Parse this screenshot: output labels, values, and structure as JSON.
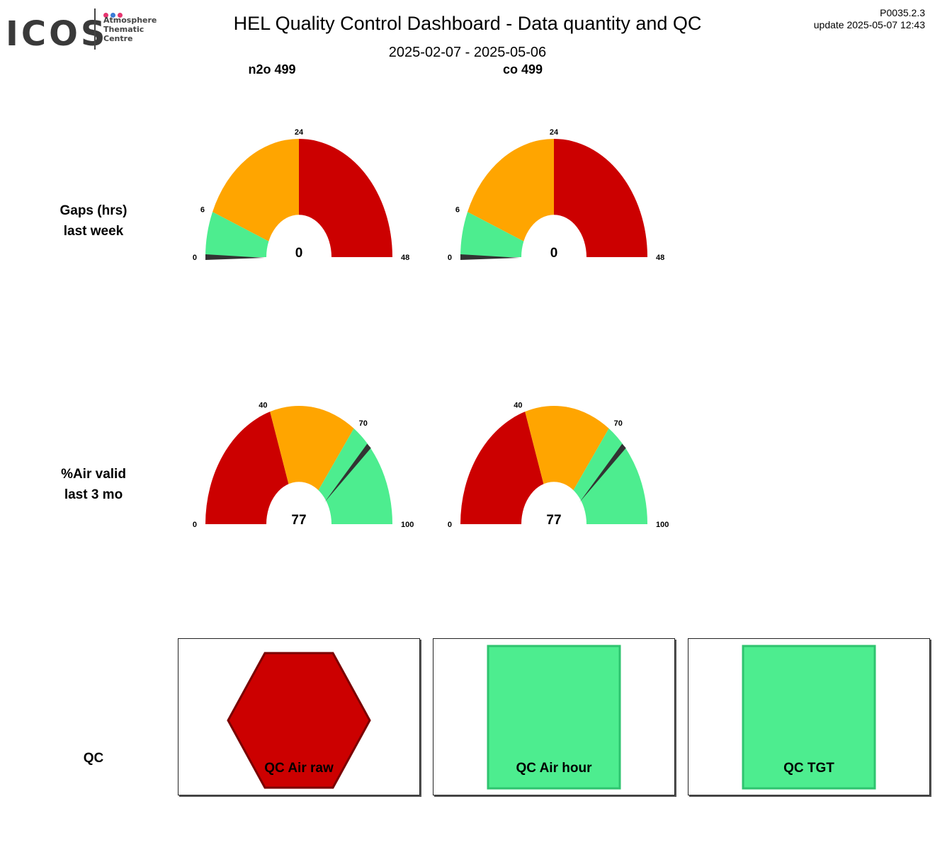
{
  "header": {
    "logo_text": "ICOS",
    "logo_subtitle": [
      "Atmosphere",
      "Thematic",
      "Centre"
    ],
    "title": "HEL  Quality Control Dashboard - Data quantity and QC",
    "date_range": "2025-02-07 - 2025-05-06",
    "version": "P0035.2.3",
    "update": "update  2025-05-07 12:43"
  },
  "colors": {
    "red": "#cc0000",
    "orange": "#ffa500",
    "green": "#4ded8f",
    "needle": "#333333",
    "logo_dots": [
      "#e6356f",
      "#3a7bd5",
      "#e6356f"
    ]
  },
  "columns": [
    "n2o 499",
    "co 499"
  ],
  "rows": {
    "gaps": [
      "Gaps (hrs)",
      "last week"
    ],
    "air": [
      "%Air valid",
      "last 3 mo"
    ],
    "qc": "QC"
  },
  "chart_data": [
    {
      "type": "gauge",
      "column": "n2o 499",
      "row": "Gaps (hrs) last week",
      "range": [
        0,
        48
      ],
      "value": 0,
      "value_label": "0",
      "ticks": [
        "0",
        "6",
        "24",
        "48"
      ],
      "bands": [
        {
          "from": 0,
          "to": 6,
          "color": "green"
        },
        {
          "from": 6,
          "to": 24,
          "color": "orange"
        },
        {
          "from": 24,
          "to": 48,
          "color": "red"
        }
      ]
    },
    {
      "type": "gauge",
      "column": "co 499",
      "row": "Gaps (hrs) last week",
      "range": [
        0,
        48
      ],
      "value": 0,
      "value_label": "0",
      "ticks": [
        "0",
        "6",
        "24",
        "48"
      ],
      "bands": [
        {
          "from": 0,
          "to": 6,
          "color": "green"
        },
        {
          "from": 6,
          "to": 24,
          "color": "orange"
        },
        {
          "from": 24,
          "to": 48,
          "color": "red"
        }
      ]
    },
    {
      "type": "gauge",
      "column": "n2o 499",
      "row": "%Air valid last 3 mo",
      "range": [
        0,
        100
      ],
      "value": 77,
      "value_label": "77",
      "ticks": [
        "0",
        "40",
        "70",
        "100"
      ],
      "bands": [
        {
          "from": 0,
          "to": 40,
          "color": "red"
        },
        {
          "from": 40,
          "to": 70,
          "color": "orange"
        },
        {
          "from": 70,
          "to": 100,
          "color": "green"
        }
      ]
    },
    {
      "type": "gauge",
      "column": "co 499",
      "row": "%Air valid last 3 mo",
      "range": [
        0,
        100
      ],
      "value": 77,
      "value_label": "77",
      "ticks": [
        "0",
        "40",
        "70",
        "100"
      ],
      "bands": [
        {
          "from": 0,
          "to": 40,
          "color": "red"
        },
        {
          "from": 40,
          "to": 70,
          "color": "orange"
        },
        {
          "from": 70,
          "to": 100,
          "color": "green"
        }
      ]
    }
  ],
  "qc_indicators": [
    {
      "label": "QC Air raw",
      "shape": "hexagon",
      "color": "red"
    },
    {
      "label": "QC Air hour",
      "shape": "square",
      "color": "green"
    },
    {
      "label": "QC TGT",
      "shape": "square",
      "color": "green"
    }
  ]
}
